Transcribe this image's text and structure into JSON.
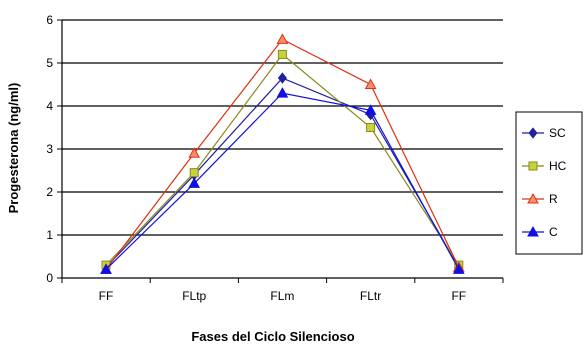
{
  "chart_data": {
    "type": "line",
    "title": "",
    "xlabel": "Fases del Ciclo Silencioso",
    "ylabel": "Progesterona (ng/ml)",
    "categories": [
      "FF",
      "FLtp",
      "FLm",
      "FLtr",
      "FF"
    ],
    "ylim": [
      0,
      6
    ],
    "yticks": [
      "0",
      "1",
      "2",
      "3",
      "4",
      "5",
      "6"
    ],
    "grid": "horizontal",
    "legend": "right",
    "series": [
      {
        "name": "SC",
        "values": [
          0.25,
          2.4,
          4.65,
          3.8,
          0.25
        ],
        "color": "#1f1f9f",
        "marker": "diamond-icon"
      },
      {
        "name": "HC",
        "values": [
          0.3,
          2.45,
          5.2,
          3.5,
          0.3
        ],
        "color": "#8a8a1a",
        "marker": "square-icon"
      },
      {
        "name": "R",
        "values": [
          0.2,
          2.9,
          5.55,
          4.5,
          0.25
        ],
        "color": "#e03010",
        "marker": "triangle-icon"
      },
      {
        "name": "C",
        "values": [
          0.2,
          2.2,
          4.3,
          3.9,
          0.2
        ],
        "color": "#1010e0",
        "marker": "triangle-icon"
      }
    ]
  }
}
